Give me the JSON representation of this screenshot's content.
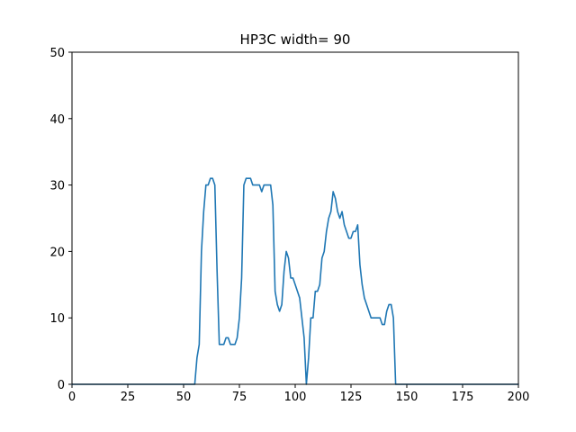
{
  "chart_data": {
    "type": "line",
    "title": "HP3C width= 90",
    "xlabel": "",
    "ylabel": "",
    "xlim": [
      0,
      200
    ],
    "ylim": [
      0,
      50
    ],
    "xticks": [
      0,
      25,
      50,
      75,
      100,
      125,
      150,
      175,
      200
    ],
    "yticks": [
      0,
      10,
      20,
      30,
      40,
      50
    ],
    "grid": false,
    "series": [
      {
        "color": "#1f77b4",
        "x": [
          0,
          55,
          56,
          57,
          58,
          59,
          60,
          61,
          62,
          63,
          64,
          65,
          66,
          67,
          68,
          69,
          70,
          71,
          72,
          73,
          74,
          75,
          76,
          77,
          78,
          79,
          80,
          81,
          82,
          83,
          84,
          85,
          86,
          87,
          88,
          89,
          90,
          91,
          92,
          93,
          94,
          95,
          96,
          97,
          98,
          99,
          100,
          101,
          102,
          103,
          104,
          105,
          106,
          107,
          108,
          109,
          110,
          111,
          112,
          113,
          114,
          115,
          116,
          117,
          118,
          119,
          120,
          121,
          122,
          123,
          124,
          125,
          126,
          127,
          128,
          129,
          130,
          131,
          132,
          133,
          134,
          135,
          136,
          137,
          138,
          139,
          140,
          141,
          142,
          143,
          144,
          145,
          200
        ],
        "y": [
          0,
          0,
          4,
          6,
          20,
          26,
          30,
          30,
          31,
          31,
          30,
          17,
          6,
          6,
          6,
          7,
          7,
          6,
          6,
          6,
          7,
          10,
          16,
          30,
          31,
          31,
          31,
          30,
          30,
          30,
          30,
          29,
          30,
          30,
          30,
          30,
          27,
          14,
          12,
          11,
          12,
          17,
          20,
          19,
          16,
          16,
          15,
          14,
          13,
          10,
          7,
          0,
          4,
          10,
          10,
          14,
          14,
          15,
          19,
          20,
          23,
          25,
          26,
          29,
          28,
          26,
          25,
          26,
          24,
          23,
          22,
          22,
          23,
          23,
          24,
          18,
          15,
          13,
          12,
          11,
          10,
          10,
          10,
          10,
          10,
          9,
          9,
          11,
          12,
          12,
          10,
          0,
          0
        ]
      }
    ]
  }
}
